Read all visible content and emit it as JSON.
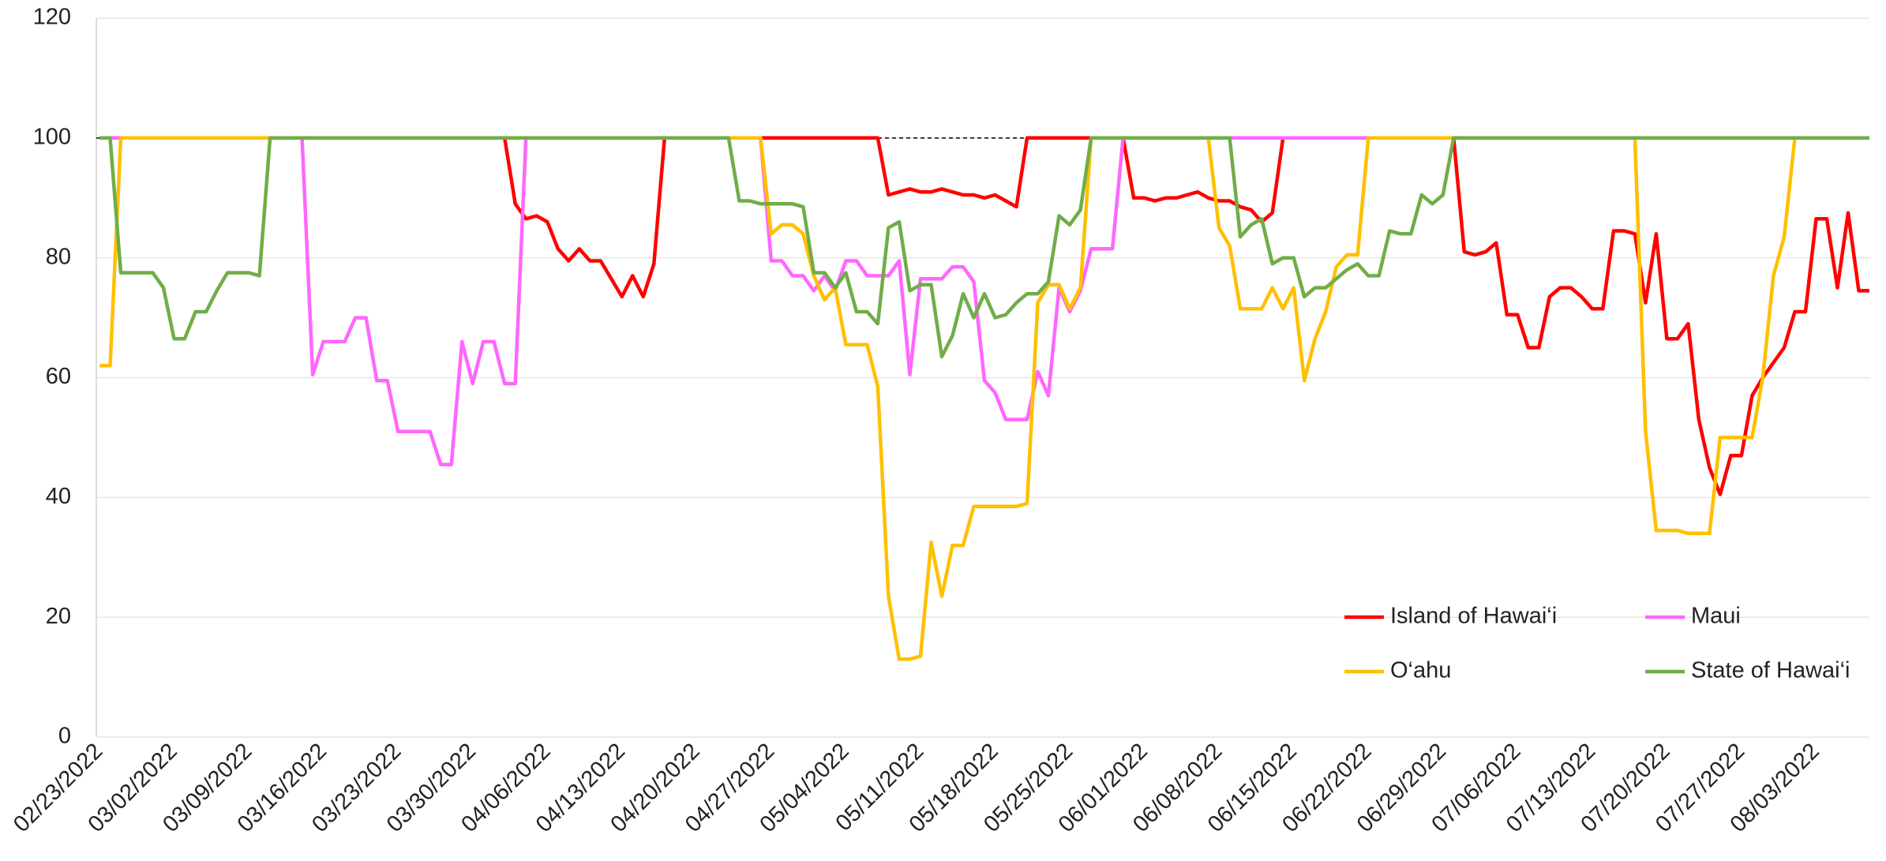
{
  "chart_data": {
    "type": "line",
    "categories": [
      "02/23/2022",
      null,
      null,
      null,
      null,
      null,
      null,
      "03/02/2022",
      null,
      null,
      null,
      null,
      null,
      null,
      "03/09/2022",
      null,
      null,
      null,
      null,
      null,
      null,
      "03/16/2022",
      null,
      null,
      null,
      null,
      null,
      null,
      "03/23/2022",
      null,
      null,
      null,
      null,
      null,
      null,
      "03/30/2022",
      null,
      null,
      null,
      null,
      null,
      null,
      "04/06/2022",
      null,
      null,
      null,
      null,
      null,
      null,
      "04/13/2022",
      null,
      null,
      null,
      null,
      null,
      null,
      "04/20/2022",
      null,
      null,
      null,
      null,
      null,
      null,
      "04/27/2022",
      null,
      null,
      null,
      null,
      null,
      null,
      "05/04/2022",
      null,
      null,
      null,
      null,
      null,
      null,
      "05/11/2022",
      null,
      null,
      null,
      null,
      null,
      null,
      "05/18/2022",
      null,
      null,
      null,
      null,
      null,
      null,
      "05/25/2022",
      null,
      null,
      null,
      null,
      null,
      null,
      "06/01/2022",
      null,
      null,
      null,
      null,
      null,
      null,
      "06/08/2022",
      null,
      null,
      null,
      null,
      null,
      null,
      "06/15/2022",
      null,
      null,
      null,
      null,
      null,
      null,
      "06/22/2022",
      null,
      null,
      null,
      null,
      null,
      null,
      "06/29/2022",
      null,
      null,
      null,
      null,
      null,
      null,
      "07/06/2022",
      null,
      null,
      null,
      null,
      null,
      null,
      "07/13/2022",
      null,
      null,
      null,
      null,
      null,
      null,
      "07/20/2022",
      null,
      null,
      null,
      null,
      null,
      null,
      "07/27/2022",
      null,
      null,
      null,
      null,
      null,
      null,
      "08/03/2022",
      null,
      null,
      null,
      null,
      null
    ],
    "series": [
      {
        "name": "Island of Hawai‘i",
        "color": "#ff0000",
        "values": [
          100,
          100,
          100,
          100,
          100,
          100,
          100,
          100,
          100,
          100,
          100,
          100,
          100,
          100,
          100,
          100,
          100,
          100,
          100,
          100,
          100,
          100,
          100,
          100,
          100,
          100,
          100,
          100,
          100,
          100,
          100,
          100,
          100,
          100,
          100,
          100,
          100,
          100,
          100,
          89,
          86.5,
          87,
          86,
          81.5,
          79.5,
          81.5,
          79.5,
          79.5,
          76.5,
          73.5,
          77,
          73.5,
          79,
          100,
          100,
          100,
          100,
          100,
          100,
          100,
          100,
          100,
          100,
          100,
          100,
          100,
          100,
          100,
          100,
          100,
          100,
          100,
          100,
          100,
          90.5,
          91,
          91.5,
          91,
          91,
          91.5,
          91,
          90.5,
          90.5,
          90,
          90.5,
          89.5,
          88.5,
          100,
          100,
          100,
          100,
          100,
          100,
          100,
          100,
          100,
          100,
          90,
          90,
          89.5,
          90,
          90,
          90.5,
          91,
          90,
          89.5,
          89.5,
          88.5,
          88,
          86,
          87.5,
          100,
          100,
          100,
          100,
          100,
          100,
          100,
          100,
          100,
          100,
          100,
          100,
          100,
          100,
          100,
          100,
          100,
          81,
          80.5,
          81,
          82.5,
          70.5,
          70.5,
          65,
          65,
          73.5,
          75,
          75,
          73.5,
          71.5,
          71.5,
          84.5,
          84.5,
          84,
          72.5,
          84,
          66.5,
          66.5,
          69,
          53,
          45,
          40.5,
          47,
          47,
          57,
          60,
          62.5,
          65,
          71,
          71,
          86.5,
          86.5,
          75,
          87.5,
          74.5,
          74.5
        ]
      },
      {
        "name": "Maui",
        "color": "#ff66ff",
        "values": [
          100,
          100,
          100,
          100,
          100,
          100,
          100,
          100,
          100,
          100,
          100,
          100,
          100,
          100,
          100,
          100,
          100,
          100,
          100,
          100,
          60.5,
          66,
          66,
          66,
          70,
          70,
          59.5,
          59.5,
          51,
          51,
          51,
          51,
          45.5,
          45.5,
          66,
          59,
          66,
          66,
          59,
          59,
          100,
          100,
          100,
          100,
          100,
          100,
          100,
          100,
          100,
          100,
          100,
          100,
          100,
          100,
          100,
          100,
          100,
          100,
          100,
          100,
          100,
          100,
          100,
          79.5,
          79.5,
          77,
          77,
          74.5,
          77,
          74.5,
          79.5,
          79.5,
          77,
          77,
          77,
          79.5,
          60.5,
          76.5,
          76.5,
          76.5,
          78.5,
          78.5,
          76,
          59.5,
          57.5,
          53,
          53,
          53,
          61,
          57,
          75,
          71,
          74.5,
          81.5,
          81.5,
          81.5,
          100,
          100,
          100,
          100,
          100,
          100,
          100,
          100,
          100,
          100,
          100,
          100,
          100,
          100,
          100,
          100,
          100,
          100,
          100,
          100,
          100,
          100,
          100,
          100,
          100,
          100,
          100,
          100,
          100,
          100,
          100,
          100,
          100,
          100,
          100,
          100,
          100,
          100,
          100,
          100,
          100,
          100,
          100,
          100,
          100,
          100,
          100,
          100,
          100,
          100,
          100,
          100,
          100,
          100,
          100,
          100,
          100,
          100,
          100,
          100,
          100,
          100,
          100,
          100,
          100,
          100,
          100,
          100,
          100,
          100,
          100
        ]
      },
      {
        "name": "O‘ahu",
        "color": "#ffc000",
        "values": [
          62,
          62,
          100,
          100,
          100,
          100,
          100,
          100,
          100,
          100,
          100,
          100,
          100,
          100,
          100,
          100,
          100,
          100,
          100,
          100,
          100,
          100,
          100,
          100,
          100,
          100,
          100,
          100,
          100,
          100,
          100,
          100,
          100,
          100,
          100,
          100,
          100,
          100,
          100,
          100,
          100,
          100,
          100,
          100,
          100,
          100,
          100,
          100,
          100,
          100,
          100,
          100,
          100,
          100,
          100,
          100,
          100,
          100,
          100,
          100,
          100,
          100,
          100,
          84,
          85.5,
          85.5,
          84,
          77,
          73,
          75,
          65.5,
          65.5,
          65.5,
          58.5,
          23.5,
          13,
          13,
          13.5,
          32.5,
          23.5,
          32,
          32,
          38.5,
          38.5,
          38.5,
          38.5,
          38.5,
          39,
          72.5,
          75.5,
          75.5,
          71.5,
          75,
          100,
          100,
          100,
          100,
          100,
          100,
          100,
          100,
          100,
          100,
          100,
          100,
          85,
          82,
          71.5,
          71.5,
          71.5,
          75,
          71.5,
          75,
          59.5,
          66.5,
          71,
          78.5,
          80.5,
          80.5,
          100,
          100,
          100,
          100,
          100,
          100,
          100,
          100,
          100,
          100,
          100,
          100,
          100,
          100,
          100,
          100,
          100,
          100,
          100,
          100,
          100,
          100,
          100,
          100,
          100,
          100,
          51,
          34.5,
          34.5,
          34.5,
          34,
          34,
          34,
          50,
          50,
          50,
          50,
          60,
          77,
          83.5,
          100,
          100,
          100,
          100,
          100,
          100,
          100,
          100
        ]
      },
      {
        "name": "State of Hawai‘i",
        "color": "#70ad47",
        "values": [
          100,
          100,
          77.5,
          77.5,
          77.5,
          77.5,
          75,
          66.5,
          66.5,
          71,
          71,
          74.5,
          77.5,
          77.5,
          77.5,
          77,
          100,
          100,
          100,
          100,
          100,
          100,
          100,
          100,
          100,
          100,
          100,
          100,
          100,
          100,
          100,
          100,
          100,
          100,
          100,
          100,
          100,
          100,
          100,
          100,
          100,
          100,
          100,
          100,
          100,
          100,
          100,
          100,
          100,
          100,
          100,
          100,
          100,
          100,
          100,
          100,
          100,
          100,
          100,
          100,
          89.5,
          89.5,
          89,
          89,
          89,
          89,
          88.5,
          77.5,
          77.5,
          75,
          77.5,
          71,
          71,
          69,
          85,
          86,
          74.5,
          75.5,
          75.5,
          63.5,
          67,
          74,
          70,
          74,
          70,
          70.5,
          72.5,
          74,
          74,
          76,
          87,
          85.5,
          88,
          100,
          100,
          100,
          100,
          100,
          100,
          100,
          100,
          100,
          100,
          100,
          100,
          100,
          100,
          83.5,
          85.5,
          86.5,
          79,
          80,
          80,
          73.5,
          75,
          75,
          76.5,
          78,
          79,
          77,
          77,
          84.5,
          84,
          84,
          90.5,
          89,
          90.5,
          100,
          100,
          100,
          100,
          100,
          100,
          100,
          100,
          100,
          100,
          100,
          100,
          100,
          100,
          100,
          100,
          100,
          100,
          100,
          100,
          100,
          100,
          100,
          100,
          100,
          100,
          100,
          100,
          100,
          100,
          100,
          100,
          100,
          100,
          100,
          100,
          100,
          100,
          100,
          100
        ]
      }
    ],
    "ylim": [
      0,
      120
    ],
    "yticks": [
      0,
      20,
      40,
      60,
      80,
      100,
      120
    ],
    "grid": true,
    "hline": 100,
    "legend": "lower right"
  }
}
